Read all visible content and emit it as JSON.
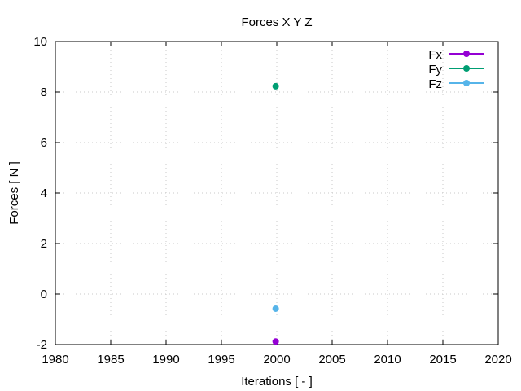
{
  "chart_data": {
    "type": "line",
    "title": "Forces X Y Z",
    "xlabel": "Iterations [ - ]",
    "ylabel": "Forces [ N ]",
    "xlim": [
      1980,
      2020
    ],
    "ylim": [
      -2,
      10
    ],
    "xticks": [
      "1980",
      "1985",
      "1990",
      "1995",
      "2000",
      "2005",
      "2010",
      "2015",
      "2020"
    ],
    "yticks": [
      "-2",
      "0",
      "2",
      "4",
      "6",
      "8",
      "10"
    ],
    "xtick_values": [
      1980,
      1985,
      1990,
      1995,
      2000,
      2005,
      2010,
      2015,
      2020
    ],
    "ytick_values": [
      -2,
      0,
      2,
      4,
      6,
      8,
      10
    ],
    "grid": true,
    "legend_position": "top-right",
    "series": [
      {
        "name": "Fx",
        "color": "#9400d3",
        "x": [
          1999.9
        ],
        "y": [
          -1.88
        ]
      },
      {
        "name": "Fy",
        "color": "#009e73",
        "x": [
          1999.9
        ],
        "y": [
          8.23
        ]
      },
      {
        "name": "Fz",
        "color": "#56b4e9",
        "x": [
          1999.9
        ],
        "y": [
          -0.58
        ]
      }
    ]
  }
}
